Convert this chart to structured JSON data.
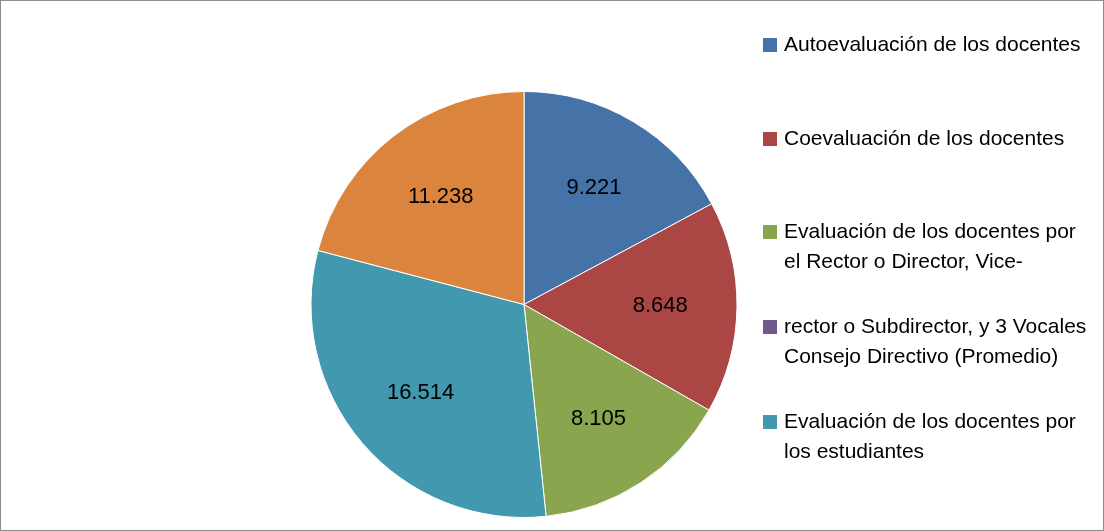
{
  "chart_data": {
    "type": "pie",
    "categories": [
      "Autoevaluación de los docentes",
      "Coevaluación de los docentes",
      "Evaluación de los docentes por el Rector o Director, Vice-",
      "rector o Subdirector, y 3 Vocales Consejo Directivo (Promedio)",
      "Evaluación de los docentes por los estudiantes",
      null
    ],
    "values": [
      9.221,
      8.648,
      8.105,
      0,
      16.514,
      11.238
    ],
    "value_labels": [
      "9.221",
      "8.648",
      "8.105",
      null,
      "16.514",
      "11.238"
    ],
    "colors": [
      "#4572a7",
      "#aa4643",
      "#89a54e",
      "#71588f",
      "#4198af",
      "#db843d"
    ],
    "legend": "right"
  }
}
